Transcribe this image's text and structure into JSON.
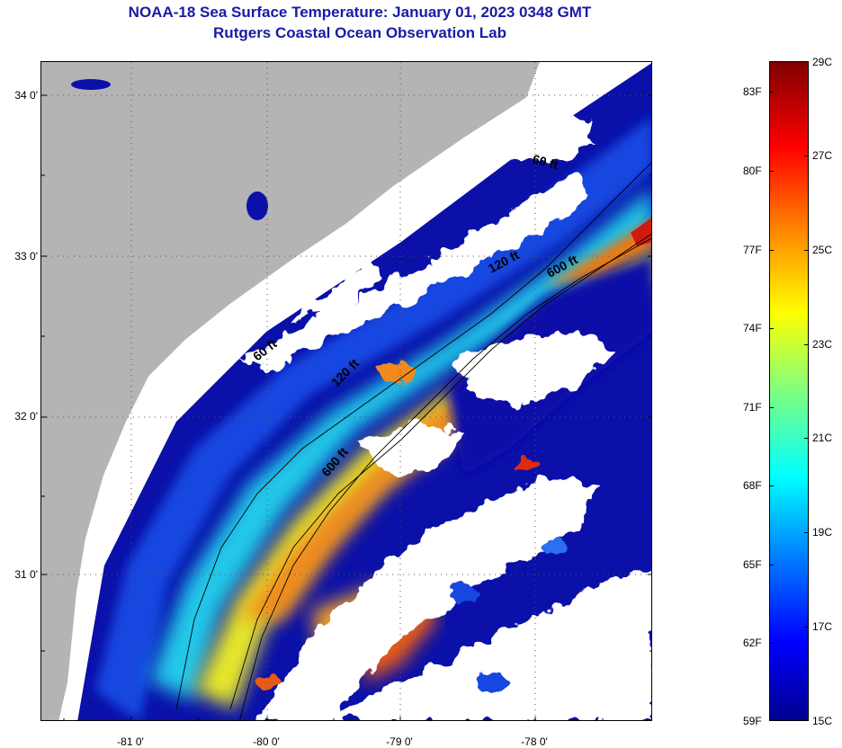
{
  "header": {
    "title": "NOAA-18 Sea Surface Temperature:  January 01, 2023 0348 GMT",
    "subtitle": "Rutgers Coastal Ocean Observation Lab"
  },
  "map": {
    "lat_labels": [
      "34 0'",
      "33 0'",
      "32 0'",
      "31 0'"
    ],
    "lon_labels": [
      "-81 0'",
      "-80 0'",
      "-79 0'",
      "-78 0'"
    ],
    "isobath_labels": [
      "60 ft",
      "120 ft",
      "600 ft",
      "60 ft",
      "120 ft",
      "600 ft"
    ],
    "colors": {
      "land": "#b4b4b4",
      "cloud": "#ffffff",
      "grid": "#555555"
    }
  },
  "colorbar": {
    "fahrenheit_labels": [
      "83F",
      "80F",
      "77F",
      "74F",
      "71F",
      "68F",
      "65F",
      "62F",
      "59F"
    ],
    "celsius_labels": [
      "29C",
      "27C",
      "25C",
      "23C",
      "21C",
      "19C",
      "17C",
      "15C"
    ],
    "colors": [
      "#00008f",
      "#0000ff",
      "#0080ff",
      "#00ffff",
      "#80ff80",
      "#ffff00",
      "#ff8000",
      "#ff0000",
      "#800000"
    ]
  }
}
